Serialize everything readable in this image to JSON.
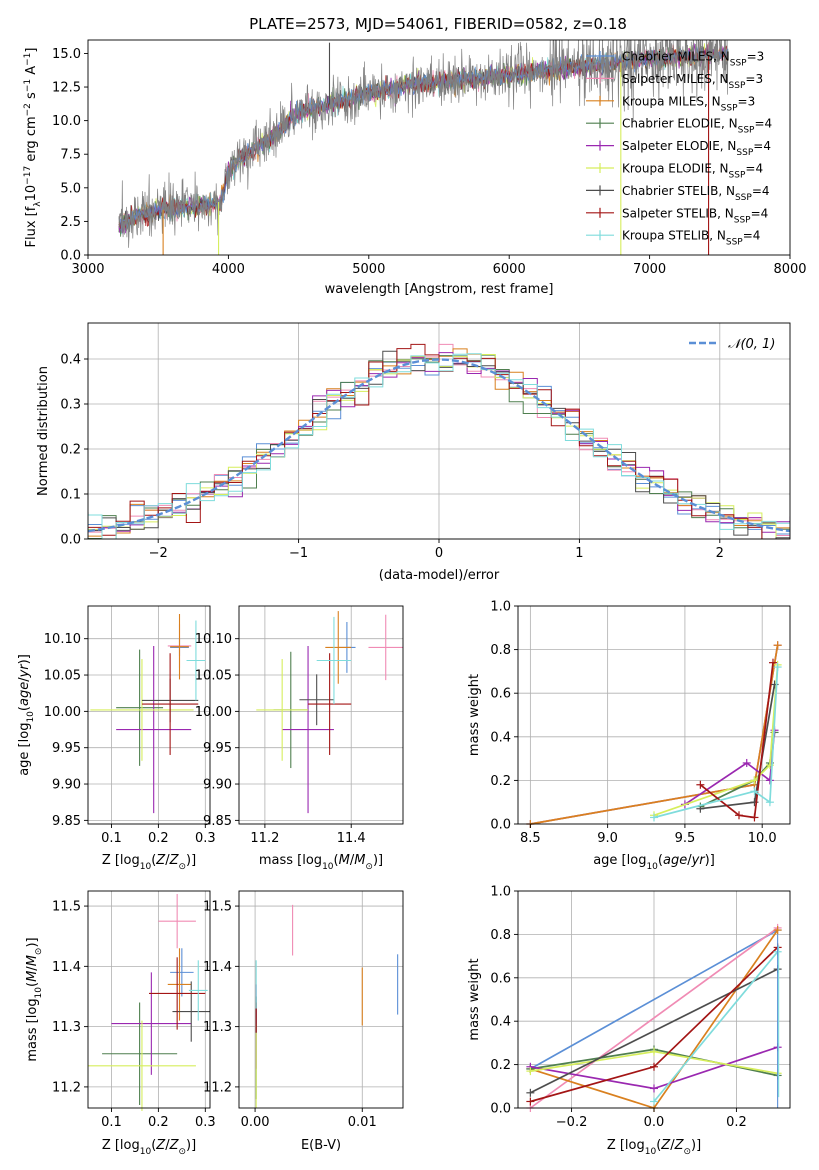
{
  "title": "PLATE=2573, MJD=54061, FIBERID=0582, z=0.18",
  "colors": {
    "chabrier_miles": "#5b8fd6",
    "salpeter_miles": "#f08bb4",
    "kroupa_miles": "#d9801f",
    "chabrier_elodie": "#4f7f4f",
    "salpeter_elodie": "#9a28b0",
    "kroupa_elodie": "#d6ee5c",
    "chabrier_stelib": "#4d4d4d",
    "salpeter_stelib": "#a31515",
    "kroupa_stelib": "#7fdcdc",
    "gaussian": "#5b8fd6"
  },
  "legend_top": [
    {
      "label": "Chabrier MILES, N",
      "sub": "SSP",
      "suffix": "=3",
      "color": "#5b8fd6"
    },
    {
      "label": "Salpeter MILES, N",
      "sub": "SSP",
      "suffix": "=3",
      "color": "#f08bb4"
    },
    {
      "label": "Kroupa MILES, N",
      "sub": "SSP",
      "suffix": "=3",
      "color": "#d9801f"
    },
    {
      "label": "Chabrier ELODIE, N",
      "sub": "SSP",
      "suffix": "=4",
      "color": "#4f7f4f"
    },
    {
      "label": "Salpeter ELODIE, N",
      "sub": "SSP",
      "suffix": "=4",
      "color": "#9a28b0"
    },
    {
      "label": "Kroupa ELODIE, N",
      "sub": "SSP",
      "suffix": "=4",
      "color": "#d6ee5c"
    },
    {
      "label": "Chabrier STELIB, N",
      "sub": "SSP",
      "suffix": "=4",
      "color": "#4d4d4d"
    },
    {
      "label": "Salpeter STELIB, N",
      "sub": "SSP",
      "suffix": "=4",
      "color": "#a31515"
    },
    {
      "label": "Kroupa STELIB, N",
      "sub": "SSP",
      "suffix": "=4",
      "color": "#7fdcdc"
    }
  ],
  "legend_hist": "𝒩(0, 1)",
  "chart_data": [
    {
      "id": "spectrum",
      "type": "line",
      "xlabel": "wavelength [Angstrom, rest frame]",
      "ylabel": "Flux [f",
      "ylabel_parts": [
        "Flux [f",
        "λ",
        "10",
        "−17",
        " erg cm",
        "−2",
        " s",
        "−1",
        " A",
        "−1",
        "]"
      ],
      "xlim": [
        3000,
        8000
      ],
      "ylim": [
        0,
        16
      ],
      "xticks": [
        3000,
        4000,
        5000,
        6000,
        7000,
        8000
      ],
      "yticks": [
        0.0,
        2.5,
        5.0,
        7.5,
        10.0,
        12.5,
        15.0
      ],
      "ytick_labels": [
        "0.0",
        "2.5",
        "5.0",
        "7.5",
        "10.0",
        "12.5",
        "15.0"
      ],
      "x_start": 3220,
      "x_end": 7560,
      "continuum": [
        [
          3220,
          2.3
        ],
        [
          3400,
          3.1
        ],
        [
          3600,
          3.5
        ],
        [
          3800,
          3.6
        ],
        [
          3950,
          4.0
        ],
        [
          4000,
          6.4
        ],
        [
          4100,
          7.3
        ],
        [
          4300,
          8.7
        ],
        [
          4500,
          10.6
        ],
        [
          4800,
          11.4
        ],
        [
          5000,
          12.1
        ],
        [
          5300,
          12.7
        ],
        [
          5600,
          13.0
        ],
        [
          5900,
          13.3
        ],
        [
          6100,
          13.5
        ],
        [
          6400,
          13.9
        ],
        [
          6700,
          14.2
        ],
        [
          7000,
          14.6
        ],
        [
          7300,
          14.8
        ],
        [
          7560,
          15.0
        ]
      ],
      "features": [
        {
          "x": 3535,
          "to": 0,
          "color": "#d9801f"
        },
        {
          "x": 3930,
          "to": 0,
          "color": "#d6ee5c"
        },
        {
          "x": 6795,
          "to": 0,
          "color": "#d6ee5c"
        },
        {
          "x": 7420,
          "to": 0,
          "color": "#a31515"
        },
        {
          "x": 4720,
          "to": 15.8,
          "color": "#4d4d4d"
        }
      ],
      "grid": false
    },
    {
      "id": "residuals",
      "type": "step",
      "xlabel": "(data-model)/error",
      "ylabel": "Normed distribution",
      "xlim": [
        -2.5,
        2.5
      ],
      "ylim": [
        0,
        0.48
      ],
      "xticks": [
        -2,
        -1,
        0,
        1,
        2
      ],
      "xtick_labels": [
        "−2",
        "−1",
        "0",
        "1",
        "2"
      ],
      "yticks": [
        0.0,
        0.1,
        0.2,
        0.3,
        0.4
      ],
      "ytick_labels": [
        "0.0",
        "0.1",
        "0.2",
        "0.3",
        "0.4"
      ],
      "bin_width": 0.1,
      "grid": true,
      "legend_placement": "top-right"
    },
    {
      "id": "age_vs_Z",
      "type": "errorbar",
      "xlabel": "Z [log10(Z/Z⊙)]",
      "ylabel": "age  [log10(age/yr)]",
      "xlim": [
        0.05,
        0.31
      ],
      "ylim": [
        9.845,
        10.145
      ],
      "xticks": [
        0.1,
        0.2,
        0.3
      ],
      "xtick_labels": [
        "0.1",
        "0.2",
        "0.3"
      ],
      "yticks": [
        9.85,
        9.9,
        9.95,
        10.0,
        10.05,
        10.1
      ],
      "ytick_labels": [
        "9.85",
        "9.90",
        "9.95",
        "10.00",
        "10.05",
        "10.10"
      ],
      "grid": true,
      "points": [
        {
          "c": "chabrier_miles",
          "x": 0.245,
          "xe": 0.02,
          "y": 10.088,
          "ye": 0.012
        },
        {
          "c": "salpeter_miles",
          "x": 0.245,
          "xe": 0.025,
          "y": 10.09,
          "ye": 0.03
        },
        {
          "c": "kroupa_miles",
          "x": 0.245,
          "xe": 0.02,
          "y": 10.089,
          "ye": 0.045
        },
        {
          "c": "chabrier_elodie",
          "x": 0.16,
          "xe": 0.05,
          "y": 10.005,
          "ye": 0.08
        },
        {
          "c": "salpeter_elodie",
          "x": 0.19,
          "xe": 0.08,
          "y": 9.975,
          "ye": 0.115
        },
        {
          "c": "kroupa_elodie",
          "x": 0.165,
          "xe": 0.11,
          "y": 10.002,
          "ye": 0.07
        },
        {
          "c": "chabrier_stelib",
          "x": 0.225,
          "xe": 0.06,
          "y": 10.015,
          "ye": 0.03
        },
        {
          "c": "salpeter_stelib",
          "x": 0.225,
          "xe": 0.06,
          "y": 10.01,
          "ye": 0.07
        },
        {
          "c": "kroupa_stelib",
          "x": 0.28,
          "xe": 0.02,
          "y": 10.07,
          "ye": 0.055
        }
      ]
    },
    {
      "id": "age_vs_mass",
      "type": "errorbar",
      "xlabel": "mass [log10(M/M⊙)]",
      "ylabel": "",
      "xlim": [
        11.14,
        11.52
      ],
      "ylim": [
        9.845,
        10.145
      ],
      "xticks": [
        11.2,
        11.4
      ],
      "xtick_labels": [
        "11.2",
        "11.4"
      ],
      "yticks": [
        9.85,
        9.9,
        9.95,
        10.0,
        10.05,
        10.1
      ],
      "ytick_labels": [
        "9.85",
        "9.90",
        "9.95",
        "10.00",
        "10.05",
        "10.10"
      ],
      "grid": true,
      "points": [
        {
          "c": "chabrier_miles",
          "x": 11.39,
          "xe": 0.02,
          "y": 10.088,
          "ye": 0.035
        },
        {
          "c": "salpeter_miles",
          "x": 11.48,
          "xe": 0.04,
          "y": 10.088,
          "ye": 0.045
        },
        {
          "c": "kroupa_miles",
          "x": 11.37,
          "xe": 0.03,
          "y": 10.088,
          "ye": 0.05
        },
        {
          "c": "chabrier_elodie",
          "x": 11.26,
          "xe": 0.04,
          "y": 10.002,
          "ye": 0.08
        },
        {
          "c": "salpeter_elodie",
          "x": 11.3,
          "xe": 0.06,
          "y": 9.975,
          "ye": 0.115
        },
        {
          "c": "kroupa_elodie",
          "x": 11.24,
          "xe": 0.06,
          "y": 10.002,
          "ye": 0.07
        },
        {
          "c": "chabrier_stelib",
          "x": 11.32,
          "xe": 0.04,
          "y": 10.016,
          "ye": 0.035
        },
        {
          "c": "salpeter_stelib",
          "x": 11.35,
          "xe": 0.05,
          "y": 10.01,
          "ye": 0.07
        },
        {
          "c": "kroupa_stelib",
          "x": 11.36,
          "xe": 0.04,
          "y": 10.07,
          "ye": 0.06
        }
      ]
    },
    {
      "id": "weight_vs_age",
      "type": "line",
      "xlabel": "age  [log10(age/yr)]",
      "ylabel": "mass weight",
      "xlim": [
        8.42,
        10.18
      ],
      "ylim": [
        0,
        1.0
      ],
      "xticks": [
        8.5,
        9.0,
        9.5,
        10.0
      ],
      "xtick_labels": [
        "8.5",
        "9.0",
        "9.5",
        "10.0"
      ],
      "yticks": [
        0.0,
        0.2,
        0.4,
        0.6,
        0.8,
        1.0
      ],
      "ytick_labels": [
        "0.0",
        "0.2",
        "0.4",
        "0.6",
        "0.8",
        "1.0"
      ],
      "grid": true,
      "series": [
        {
          "c": "chabrier_miles",
          "x": [
            8.5,
            9.95,
            10.1
          ],
          "y": [
            0.0,
            0.18,
            0.82
          ]
        },
        {
          "c": "salpeter_miles",
          "x": [
            8.5,
            9.95,
            10.1
          ],
          "y": [
            0.0,
            0.18,
            0.82
          ]
        },
        {
          "c": "kroupa_miles",
          "x": [
            8.5,
            9.95,
            10.1
          ],
          "y": [
            0.0,
            0.18,
            0.82
          ]
        },
        {
          "c": "chabrier_elodie",
          "x": [
            9.6,
            9.95,
            10.05,
            10.08
          ],
          "y": [
            0.08,
            0.2,
            0.28,
            0.42
          ]
        },
        {
          "c": "salpeter_elodie",
          "x": [
            9.5,
            9.9,
            10.05,
            10.08
          ],
          "y": [
            0.09,
            0.28,
            0.2,
            0.43
          ]
        },
        {
          "c": "kroupa_elodie",
          "x": [
            9.3,
            9.95,
            10.05,
            10.1
          ],
          "y": [
            0.04,
            0.2,
            0.27,
            0.73
          ]
        },
        {
          "c": "chabrier_stelib",
          "x": [
            9.6,
            9.95,
            10.08
          ],
          "y": [
            0.07,
            0.1,
            0.64
          ]
        },
        {
          "c": "salpeter_stelib",
          "x": [
            9.6,
            9.85,
            9.95,
            10.07
          ],
          "y": [
            0.18,
            0.04,
            0.03,
            0.74
          ]
        },
        {
          "c": "kroupa_stelib",
          "x": [
            9.3,
            9.95,
            10.05,
            10.1
          ],
          "y": [
            0.03,
            0.15,
            0.1,
            0.72
          ]
        }
      ]
    },
    {
      "id": "mass_vs_Z",
      "type": "errorbar",
      "xlabel": "Z [log10(Z/Z⊙)]",
      "ylabel": "mass [log10(M/M⊙)]",
      "xlim": [
        0.05,
        0.31
      ],
      "ylim": [
        11.165,
        11.525
      ],
      "xticks": [
        0.1,
        0.2,
        0.3
      ],
      "xtick_labels": [
        "0.1",
        "0.2",
        "0.3"
      ],
      "yticks": [
        11.2,
        11.3,
        11.4,
        11.5
      ],
      "ytick_labels": [
        "11.2",
        "11.3",
        "11.4",
        "11.5"
      ],
      "grid": true,
      "points": [
        {
          "c": "chabrier_miles",
          "x": 0.25,
          "xe": 0.025,
          "y": 11.39,
          "ye": 0.04
        },
        {
          "c": "salpeter_miles",
          "x": 0.24,
          "xe": 0.04,
          "y": 11.475,
          "ye": 0.045
        },
        {
          "c": "kroupa_miles",
          "x": 0.245,
          "xe": 0.025,
          "y": 11.37,
          "ye": 0.06
        },
        {
          "c": "chabrier_elodie",
          "x": 0.16,
          "xe": 0.08,
          "y": 11.255,
          "ye": 0.085
        },
        {
          "c": "salpeter_elodie",
          "x": 0.185,
          "xe": 0.085,
          "y": 11.305,
          "ye": 0.085
        },
        {
          "c": "kroupa_elodie",
          "x": 0.165,
          "xe": 0.115,
          "y": 11.235,
          "ye": 0.075
        },
        {
          "c": "chabrier_stelib",
          "x": 0.27,
          "xe": 0.04,
          "y": 11.325,
          "ye": 0.05
        },
        {
          "c": "salpeter_stelib",
          "x": 0.24,
          "xe": 0.06,
          "y": 11.355,
          "ye": 0.06
        },
        {
          "c": "kroupa_stelib",
          "x": 0.285,
          "xe": 0.02,
          "y": 11.36,
          "ye": 0.05
        }
      ]
    },
    {
      "id": "mass_vs_EBV",
      "type": "errorbar",
      "xlabel": "E(B-V)",
      "ylabel": "",
      "xlim": [
        -0.0015,
        0.0138
      ],
      "ylim": [
        11.165,
        11.525
      ],
      "xticks": [
        0.0,
        0.01
      ],
      "xtick_labels": [
        "0.00",
        "0.01"
      ],
      "yticks": [
        11.2,
        11.3,
        11.4,
        11.5
      ],
      "ytick_labels": [
        "11.2",
        "11.3",
        "11.4",
        "11.5"
      ],
      "grid": true,
      "points": [
        {
          "c": "chabrier_miles",
          "x": 0.0133,
          "xe": 0,
          "y": 11.37,
          "ye": 0.05
        },
        {
          "c": "salpeter_miles",
          "x": 0.0035,
          "xe": 0,
          "y": 11.46,
          "ye": 0.042
        },
        {
          "c": "kroupa_miles",
          "x": 0.01,
          "xe": 0,
          "y": 11.35,
          "ye": 0.048
        },
        {
          "c": "chabrier_elodie",
          "x": 0.0001,
          "xe": 0,
          "y": 11.26,
          "ye": 0.08
        },
        {
          "c": "salpeter_elodie",
          "x": 0.0001,
          "xe": 0,
          "y": 11.3,
          "ye": 0.07
        },
        {
          "c": "kroupa_elodie",
          "x": 0.0001,
          "xe": 0,
          "y": 11.235,
          "ye": 0.07
        },
        {
          "c": "chabrier_stelib",
          "x": 0.0001,
          "xe": 0,
          "y": 11.32,
          "ye": 0.03
        },
        {
          "c": "salpeter_stelib",
          "x": 0.0001,
          "xe": 0,
          "y": 11.315,
          "ye": 0.025
        },
        {
          "c": "kroupa_stelib",
          "x": 0.0001,
          "xe": 0,
          "y": 11.37,
          "ye": 0.04
        }
      ]
    },
    {
      "id": "weight_vs_Z",
      "type": "line",
      "xlabel": "Z [log10(Z/Z⊙)]",
      "ylabel": "mass weight",
      "xlim": [
        -0.33,
        0.33
      ],
      "ylim": [
        0,
        1.0
      ],
      "xticks": [
        -0.2,
        0.0,
        0.2
      ],
      "xtick_labels": [
        "−0.2",
        "0.0",
        "0.2"
      ],
      "yticks": [
        0.0,
        0.2,
        0.4,
        0.6,
        0.8,
        1.0
      ],
      "ytick_labels": [
        "0.0",
        "0.2",
        "0.4",
        "0.6",
        "0.8",
        "1.0"
      ],
      "grid": true,
      "series": [
        {
          "c": "chabrier_miles",
          "x": [
            -0.3,
            0.3
          ],
          "y": [
            0.18,
            0.82
          ]
        },
        {
          "c": "salpeter_miles",
          "x": [
            -0.3,
            0.3
          ],
          "y": [
            0.0,
            0.83
          ]
        },
        {
          "c": "kroupa_miles",
          "x": [
            -0.3,
            0.0,
            0.3
          ],
          "y": [
            0.18,
            0.0,
            0.82
          ]
        },
        {
          "c": "chabrier_elodie",
          "x": [
            -0.3,
            0.0,
            0.3
          ],
          "y": [
            0.18,
            0.27,
            0.15
          ]
        },
        {
          "c": "salpeter_elodie",
          "x": [
            -0.3,
            0.0,
            0.3
          ],
          "y": [
            0.19,
            0.09,
            0.28
          ]
        },
        {
          "c": "kroupa_elodie",
          "x": [
            -0.3,
            0.0,
            0.3
          ],
          "y": [
            0.17,
            0.26,
            0.16
          ]
        },
        {
          "c": "chabrier_stelib",
          "x": [
            -0.3,
            0.3
          ],
          "y": [
            0.07,
            0.64
          ]
        },
        {
          "c": "salpeter_stelib",
          "x": [
            -0.3,
            0.0,
            0.3
          ],
          "y": [
            0.03,
            0.19,
            0.74
          ]
        },
        {
          "c": "kroupa_stelib",
          "x": [
            0.0,
            0.3
          ],
          "y": [
            0.03,
            0.72
          ]
        }
      ]
    }
  ]
}
